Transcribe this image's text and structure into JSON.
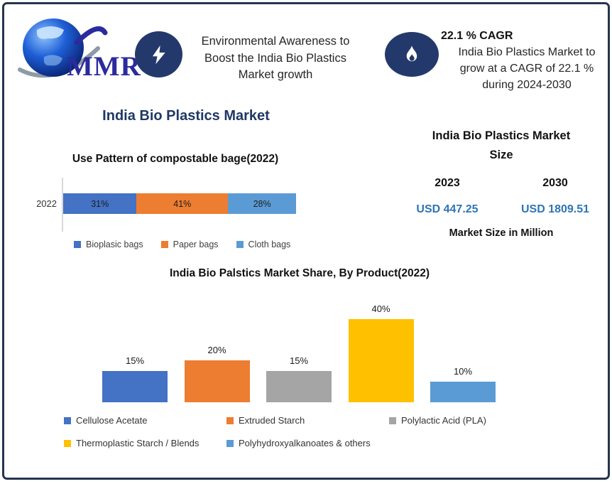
{
  "colors": {
    "navy_icon": "#24396B",
    "navy_heading": "#1F3864",
    "frame_border": "#26344E",
    "usd_blue": "#2E75B6"
  },
  "logo": {
    "text": "MMR"
  },
  "header": {
    "growth_note": {
      "lines": [
        "Environmental Awareness to",
        "Boost the India Bio Plastics",
        "Market growth"
      ]
    },
    "cagr": {
      "title": "22.1 % CAGR",
      "lines": [
        "India Bio Plastics Market to",
        "grow at a CAGR of 22.1 %",
        "during 2024-2030"
      ]
    }
  },
  "page_title": "India Bio Plastics Market",
  "market_size": {
    "title_line1": "India Bio Plastics Market",
    "title_line2": "Size",
    "years": [
      "2023",
      "2030"
    ],
    "values": [
      "USD 447.25",
      "USD 1809.51"
    ],
    "note": "Market Size in Million"
  },
  "chart_data": [
    {
      "type": "bar",
      "subtype": "stacked-horizontal",
      "title": "Use Pattern of compostable bage(2022)",
      "categories": [
        "2022"
      ],
      "series": [
        {
          "name": "Bioplasic bags",
          "values": [
            31
          ],
          "color": "#4472C4"
        },
        {
          "name": "Paper bags",
          "values": [
            41
          ],
          "color": "#ED7D31"
        },
        {
          "name": "Cloth bags",
          "values": [
            28
          ],
          "color": "#5B9BD5"
        }
      ],
      "data_labels": [
        "31%",
        "41%",
        "28%"
      ],
      "xlim": [
        0,
        100
      ],
      "legend_position": "bottom",
      "grid": false
    },
    {
      "type": "bar",
      "subtype": "vertical",
      "title": "India Bio Palstics Market Share, By Product(2022)",
      "categories": [
        "Cellulose Acetate",
        "Extruded Starch",
        "Polylactic Acid (PLA)",
        "Thermoplastic Starch / Blends",
        "Polyhydroxyalkanoates & others"
      ],
      "values": [
        15,
        20,
        15,
        40,
        10
      ],
      "data_labels": [
        "15%",
        "20%",
        "15%",
        "40%",
        "10%"
      ],
      "colors": [
        "#4472C4",
        "#ED7D31",
        "#A5A5A5",
        "#FFC000",
        "#5B9BD5"
      ],
      "ylim": [
        0,
        45
      ],
      "legend_position": "bottom",
      "grid": false
    }
  ]
}
